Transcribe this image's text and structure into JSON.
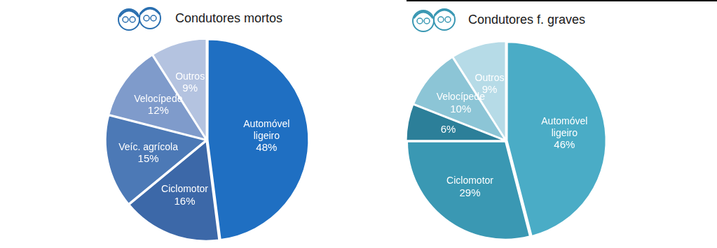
{
  "chart_data": [
    {
      "type": "pie",
      "title": "Condutores mortos",
      "categories": [
        "Automóvel ligeiro",
        "Ciclomotor",
        "Veíc. agrícola",
        "Velocípede",
        "Outros"
      ],
      "values": [
        48,
        16,
        15,
        12,
        9
      ],
      "value_labels": [
        "48%",
        "16%",
        "15%",
        "12%",
        "9%"
      ],
      "colors": [
        "#1f6fc2",
        "#3c68a8",
        "#4c79b6",
        "#7f9bcb",
        "#b4c3e0"
      ],
      "data_labels": true
    },
    {
      "type": "pie",
      "title": "Condutores f. graves",
      "categories": [
        "Automóvel ligeiro",
        "Ciclomotor",
        null,
        "Velocípede",
        "Outros"
      ],
      "values": [
        46,
        29,
        6,
        10,
        9
      ],
      "value_labels": [
        "46%",
        "29%",
        "6%",
        "10%",
        "9%"
      ],
      "colors": [
        "#4aacc6",
        "#3a98b3",
        "#2c7f99",
        "#8cc5d6",
        "#b6dbe7"
      ],
      "data_labels": true
    }
  ]
}
